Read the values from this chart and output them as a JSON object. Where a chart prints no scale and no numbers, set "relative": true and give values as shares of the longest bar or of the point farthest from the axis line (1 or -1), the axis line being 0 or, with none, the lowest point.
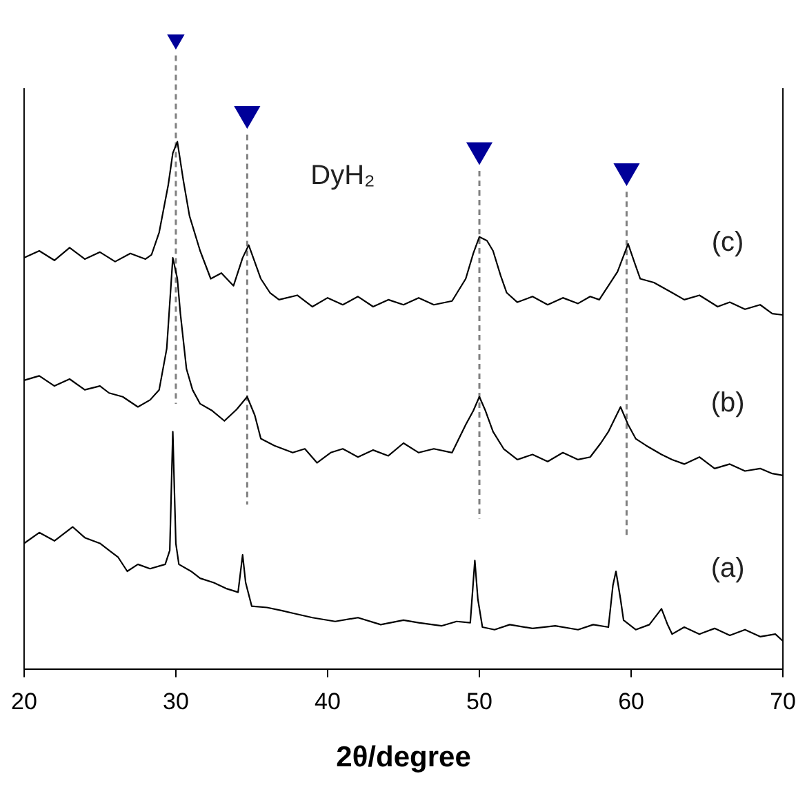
{
  "chart_data": {
    "type": "line",
    "xlabel": "2θ/degree",
    "relative": true,
    "xlim": [
      20,
      70
    ],
    "xticks": [
      20,
      30,
      40,
      50,
      60,
      70
    ],
    "grid": false,
    "legend": false,
    "marker": "none",
    "series": [
      {
        "name": "(c)",
        "color": "#000000",
        "x": [
          20,
          21,
          22,
          23,
          24,
          25,
          26,
          27,
          28,
          28.4,
          28.9,
          29.5,
          29.8,
          30.1,
          30.5,
          30.9,
          31.6,
          32.3,
          33,
          33.8,
          34.4,
          34.8,
          35.6,
          36.2,
          36.8,
          38,
          39,
          40,
          41,
          42,
          43,
          44,
          45,
          46,
          47,
          48.2,
          49.1,
          49.6,
          50,
          50.5,
          50.9,
          51.4,
          51.8,
          52.5,
          53.5,
          54.5,
          55.5,
          56.5,
          57.3,
          57.9,
          58.5,
          59.1,
          59.8,
          60.2,
          60.6,
          61.5,
          62.7,
          63.5,
          64.5,
          65.7,
          66.5,
          67.5,
          68.5,
          69.3,
          70
        ],
        "values": [
          0.648,
          0.659,
          0.644,
          0.664,
          0.646,
          0.657,
          0.642,
          0.655,
          0.646,
          0.653,
          0.688,
          0.763,
          0.813,
          0.831,
          0.769,
          0.714,
          0.659,
          0.615,
          0.624,
          0.604,
          0.648,
          0.668,
          0.615,
          0.593,
          0.582,
          0.589,
          0.571,
          0.585,
          0.574,
          0.587,
          0.571,
          0.582,
          0.574,
          0.585,
          0.574,
          0.58,
          0.615,
          0.655,
          0.681,
          0.675,
          0.659,
          0.62,
          0.593,
          0.578,
          0.587,
          0.574,
          0.585,
          0.576,
          0.587,
          0.582,
          0.604,
          0.626,
          0.67,
          0.642,
          0.615,
          0.609,
          0.593,
          0.582,
          0.589,
          0.571,
          0.578,
          0.567,
          0.574,
          0.56,
          0.558
        ]
      },
      {
        "name": "(b)",
        "color": "#000000",
        "x": [
          20,
          21,
          22,
          23,
          24,
          25,
          25.6,
          26.5,
          27.5,
          28.3,
          28.9,
          29.4,
          29.8,
          30.1,
          30.3,
          30.7,
          31.1,
          31.6,
          32.4,
          33.2,
          34,
          34.7,
          35.2,
          35.6,
          36.5,
          37.7,
          38.5,
          39.3,
          40.2,
          41,
          42,
          43,
          44,
          45,
          46,
          47,
          48.2,
          49.1,
          49.6,
          50,
          50.4,
          50.9,
          51.6,
          52.5,
          53.5,
          54.5,
          55.5,
          56.5,
          57.3,
          58,
          58.5,
          59.3,
          59.8,
          60.3,
          61,
          62,
          62.7,
          63.5,
          64.5,
          65.5,
          66.5,
          67.5,
          68.5,
          69.3,
          70
        ],
        "values": [
          0.455,
          0.462,
          0.446,
          0.457,
          0.44,
          0.446,
          0.435,
          0.429,
          0.413,
          0.424,
          0.44,
          0.505,
          0.648,
          0.615,
          0.56,
          0.473,
          0.44,
          0.418,
          0.407,
          0.391,
          0.409,
          0.429,
          0.4,
          0.363,
          0.352,
          0.341,
          0.347,
          0.325,
          0.341,
          0.347,
          0.334,
          0.345,
          0.336,
          0.356,
          0.341,
          0.347,
          0.341,
          0.385,
          0.407,
          0.429,
          0.407,
          0.374,
          0.347,
          0.33,
          0.338,
          0.327,
          0.341,
          0.33,
          0.334,
          0.356,
          0.374,
          0.413,
          0.385,
          0.363,
          0.352,
          0.338,
          0.33,
          0.323,
          0.334,
          0.316,
          0.323,
          0.312,
          0.316,
          0.308,
          0.305
        ]
      },
      {
        "name": "(a)",
        "color": "#000000",
        "x": [
          20,
          21,
          22,
          23.2,
          24,
          25,
          25.6,
          26.2,
          26.8,
          27.5,
          28.3,
          29.3,
          29.6,
          29.8,
          30,
          30.2,
          31,
          31.6,
          32.5,
          33.3,
          34.1,
          34.4,
          34.6,
          35,
          36,
          37,
          37.7,
          39,
          40.5,
          42,
          43.5,
          45,
          46,
          47.5,
          48.5,
          49.4,
          49.7,
          49.9,
          50.2,
          51,
          52,
          53.5,
          55,
          56.5,
          57.5,
          58.5,
          58.8,
          59,
          59.3,
          59.5,
          60.3,
          61.2,
          62,
          62.4,
          62.7,
          63.5,
          64.5,
          65.5,
          66.5,
          67.5,
          68.5,
          69.5,
          70
        ],
        "values": [
          0.198,
          0.215,
          0.202,
          0.224,
          0.207,
          0.198,
          0.187,
          0.176,
          0.154,
          0.165,
          0.158,
          0.165,
          0.187,
          0.374,
          0.198,
          0.165,
          0.154,
          0.143,
          0.136,
          0.127,
          0.121,
          0.18,
          0.136,
          0.099,
          0.097,
          0.092,
          0.088,
          0.081,
          0.075,
          0.081,
          0.07,
          0.077,
          0.073,
          0.068,
          0.075,
          0.073,
          0.171,
          0.11,
          0.066,
          0.062,
          0.07,
          0.064,
          0.068,
          0.062,
          0.07,
          0.066,
          0.132,
          0.154,
          0.11,
          0.077,
          0.062,
          0.07,
          0.095,
          0.07,
          0.055,
          0.066,
          0.055,
          0.064,
          0.053,
          0.062,
          0.051,
          0.055,
          0.044
        ]
      },
      {
        "color": "#808080",
        "line_style": "dashed",
        "x": [
          30,
          30
        ],
        "values": [
          0.967,
          0.418
        ]
      },
      {
        "color": "#808080",
        "line_style": "dashed",
        "x": [
          34.7,
          34.7
        ],
        "values": [
          0.842,
          0.259
        ]
      },
      {
        "color": "#808080",
        "line_style": "dashed",
        "x": [
          50,
          50
        ],
        "values": [
          0.785,
          0.237
        ]
      },
      {
        "color": "#808080",
        "line_style": "dashed",
        "x": [
          59.7,
          59.7
        ],
        "values": [
          0.752,
          0.209
        ]
      },
      {
        "type": "scatter",
        "color": "#000099",
        "marker": "triangle",
        "x": [
          30,
          34.7,
          50,
          59.7
        ],
        "values": [
          1,
          0.875,
          0.818,
          0.785
        ]
      }
    ],
    "annotations": [
      "DyH₂"
    ]
  }
}
